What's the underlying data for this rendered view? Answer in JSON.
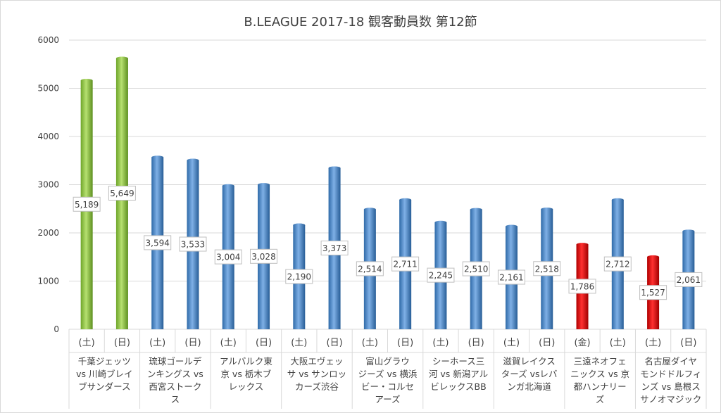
{
  "chart_data": {
    "type": "bar",
    "title": "B.LEAGUE 2017-18 観客動員数 第12節",
    "xlabel": "",
    "ylabel": "",
    "ylim": [
      0,
      6000
    ],
    "yticks": [
      0,
      1000,
      2000,
      3000,
      4000,
      5000,
      6000
    ],
    "grid": true,
    "legend": "none",
    "colors": {
      "green": "#8cc63f",
      "blue": "#4a86c8",
      "red": "#e00000"
    },
    "groups": [
      {
        "name_lines": [
          "千葉ジェッツ",
          "vs 川崎ブレイ",
          "ブサンダース"
        ],
        "bars": [
          {
            "day": "(土)",
            "value": 5189,
            "label": "5,189",
            "color": "green"
          },
          {
            "day": "(日)",
            "value": 5649,
            "label": "5,649",
            "color": "green"
          }
        ]
      },
      {
        "name_lines": [
          "琉球ゴールデ",
          "ンキングス vs",
          "西宮ストーク",
          "ス"
        ],
        "bars": [
          {
            "day": "(土)",
            "value": 3594,
            "label": "3,594",
            "color": "blue"
          },
          {
            "day": "(日)",
            "value": 3533,
            "label": "3,533",
            "color": "blue"
          }
        ]
      },
      {
        "name_lines": [
          "アルバルク東",
          "京 vs 栃木ブ",
          "レックス"
        ],
        "bars": [
          {
            "day": "(土)",
            "value": 3004,
            "label": "3,004",
            "color": "blue"
          },
          {
            "day": "(日)",
            "value": 3028,
            "label": "3,028",
            "color": "blue"
          }
        ]
      },
      {
        "name_lines": [
          "大阪エヴェッ",
          "サ vs サンロッ",
          "カーズ渋谷"
        ],
        "bars": [
          {
            "day": "(土)",
            "value": 2190,
            "label": "2,190",
            "color": "blue"
          },
          {
            "day": "(日)",
            "value": 3373,
            "label": "3,373",
            "color": "blue"
          }
        ]
      },
      {
        "name_lines": [
          "富山グラウ",
          "ジーズ vs 横浜",
          "ビー・コルセ",
          "アーズ"
        ],
        "bars": [
          {
            "day": "(土)",
            "value": 2514,
            "label": "2,514",
            "color": "blue"
          },
          {
            "day": "(日)",
            "value": 2711,
            "label": "2,711",
            "color": "blue"
          }
        ]
      },
      {
        "name_lines": [
          "シーホース三",
          "河 vs 新潟アル",
          "ビレックスBB"
        ],
        "bars": [
          {
            "day": "(土)",
            "value": 2245,
            "label": "2,245",
            "color": "blue"
          },
          {
            "day": "(日)",
            "value": 2510,
            "label": "2,510",
            "color": "blue"
          }
        ]
      },
      {
        "name_lines": [
          "滋賀レイクス",
          "ターズ vsレバ",
          "ンガ北海道"
        ],
        "bars": [
          {
            "day": "(土)",
            "value": 2161,
            "label": "2,161",
            "color": "blue"
          },
          {
            "day": "(日)",
            "value": 2518,
            "label": "2,518",
            "color": "blue"
          }
        ]
      },
      {
        "name_lines": [
          "三遠ネオフェ",
          "ニックス vs 京",
          "都ハンナリー",
          "ズ"
        ],
        "bars": [
          {
            "day": "(金)",
            "value": 1786,
            "label": "1,786",
            "color": "red"
          },
          {
            "day": "(土)",
            "value": 2712,
            "label": "2,712",
            "color": "blue"
          }
        ]
      },
      {
        "name_lines": [
          "名古屋ダイヤ",
          "モンドドルフィ",
          "ンズ vs 島根ス",
          "サノオマジック"
        ],
        "bars": [
          {
            "day": "(土)",
            "value": 1527,
            "label": "1,527",
            "color": "red"
          },
          {
            "day": "(日)",
            "value": 2061,
            "label": "2,061",
            "color": "blue"
          }
        ]
      }
    ]
  }
}
